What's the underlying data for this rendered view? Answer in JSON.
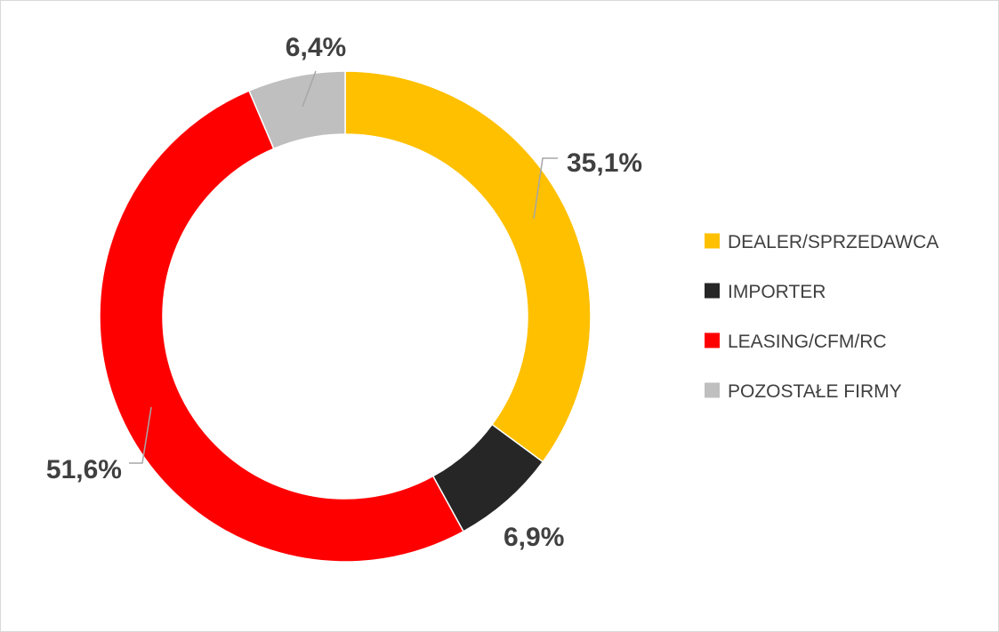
{
  "chart_data": {
    "type": "pie",
    "variant": "donut",
    "legend_position": "right",
    "slices": [
      {
        "label": "DEALER/SPRZEDAWCA",
        "value": 35.1,
        "value_label": "35,1%",
        "color": "#FFC000"
      },
      {
        "label": "IMPORTER",
        "value": 6.9,
        "value_label": "6,9%",
        "color": "#262626"
      },
      {
        "label": "LEASING/CFM/RC",
        "value": 51.6,
        "value_label": "51,6%",
        "color": "#FF0000"
      },
      {
        "label": "POZOSTAŁE FIRMY",
        "value": 6.4,
        "value_label": "6,4%",
        "color": "#BFBFBF"
      }
    ]
  }
}
